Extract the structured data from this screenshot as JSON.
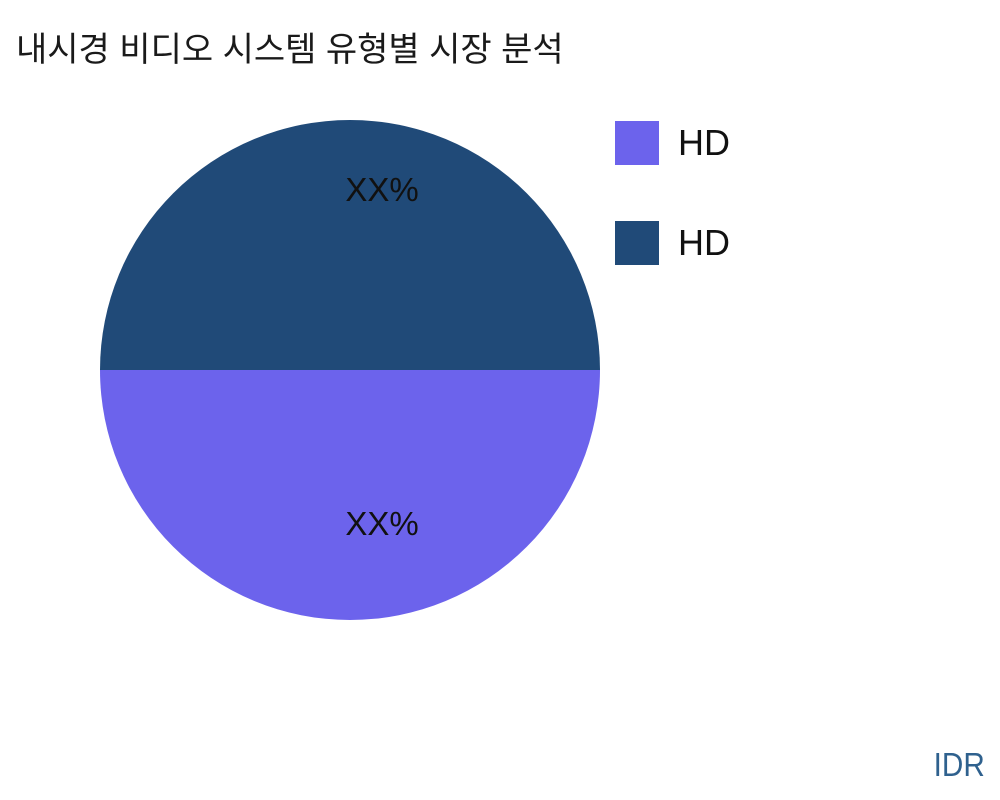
{
  "title": "내시경 비디오 시스템 유형별 시장 분석",
  "watermark": "IDR",
  "colors": {
    "background": "#ffffff",
    "title_text": "#1a1a1a",
    "label_text": "#111111",
    "watermark_text": "#2F618E",
    "slice_purple": "#6C63EC",
    "slice_navy": "#204A78"
  },
  "chart_data": {
    "type": "pie",
    "title": "내시경 비디오 시스템 유형별 시장 분석",
    "legend_position": "right",
    "source_label": "IDR",
    "series": [
      {
        "name": "HD",
        "color": "#6C63EC",
        "percent": 50,
        "data_label": "XX%",
        "half": "bottom"
      },
      {
        "name": "HD",
        "color": "#204A78",
        "percent": 50,
        "data_label": "XX%",
        "half": "top"
      }
    ]
  },
  "legend": {
    "items": [
      {
        "label": "HD",
        "color": "#6C63EC"
      },
      {
        "label": "HD",
        "color": "#204A78"
      }
    ]
  }
}
